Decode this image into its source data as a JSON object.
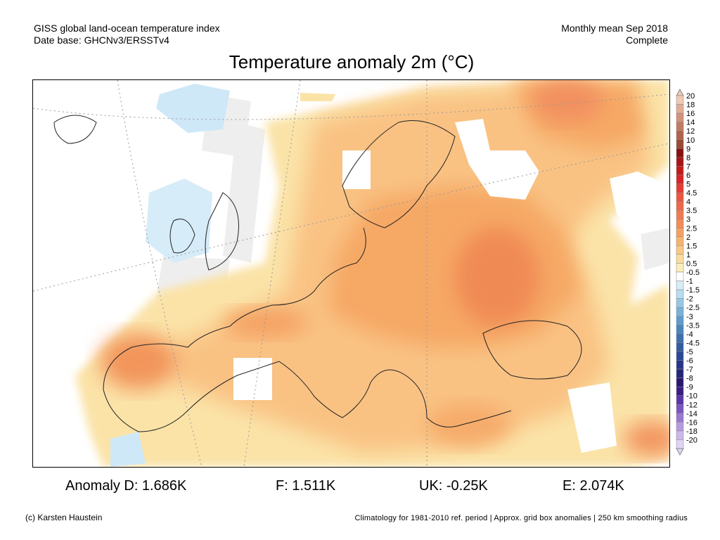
{
  "header": {
    "line1_left": "GISS global land-ocean temperature index",
    "line2_left": "Date base: GHCNv3/ERSSTv4",
    "line1_right": "Monthly mean Sep 2018",
    "line2_right": "Complete"
  },
  "title": "Temperature anomaly 2m (°C)",
  "stats": {
    "d": "Anomaly D: 1.686K",
    "f": "F: 1.511K",
    "uk": "UK: -0.25K",
    "e": "E: 2.074K"
  },
  "credit": "(c) Karsten Haustein",
  "footnote": "Climatology for 1981-2010 ref. period | Approx. grid box anomalies | 250 km smoothing radius",
  "colorbar": {
    "levels": [
      {
        "label": "20",
        "color": "#f0c8b4"
      },
      {
        "label": "18",
        "color": "#e3ad95"
      },
      {
        "label": "16",
        "color": "#d4917a"
      },
      {
        "label": "14",
        "color": "#c47a62"
      },
      {
        "label": "12",
        "color": "#b0624a"
      },
      {
        "label": "10",
        "color": "#9a4a35"
      },
      {
        "label": "9",
        "color": "#8a1010"
      },
      {
        "label": "8",
        "color": "#a81414"
      },
      {
        "label": "7",
        "color": "#c41a1a"
      },
      {
        "label": "6",
        "color": "#d82424"
      },
      {
        "label": "5",
        "color": "#e83a30"
      },
      {
        "label": "4.5",
        "color": "#ee5540"
      },
      {
        "label": "4",
        "color": "#f06848"
      },
      {
        "label": "3.5",
        "color": "#f27a50"
      },
      {
        "label": "3",
        "color": "#f48c58"
      },
      {
        "label": "2.5",
        "color": "#f6a062"
      },
      {
        "label": "2",
        "color": "#f8b46e"
      },
      {
        "label": "1.5",
        "color": "#fac882"
      },
      {
        "label": "1",
        "color": "#fcdc9a"
      },
      {
        "label": "0.5",
        "color": "#fbeeba"
      },
      {
        "label": "-0.5",
        "color": "#ffffff"
      },
      {
        "label": "-1",
        "color": "#d8ecf8"
      },
      {
        "label": "-1.5",
        "color": "#b8dcf0"
      },
      {
        "label": "-2",
        "color": "#96c8e6"
      },
      {
        "label": "-2.5",
        "color": "#78b2da"
      },
      {
        "label": "-3",
        "color": "#5e9ccc"
      },
      {
        "label": "-3.5",
        "color": "#4a86be"
      },
      {
        "label": "-4",
        "color": "#3c70ae"
      },
      {
        "label": "-4.5",
        "color": "#325ca0"
      },
      {
        "label": "-5",
        "color": "#2a4896"
      },
      {
        "label": "-6",
        "color": "#26368a"
      },
      {
        "label": "-7",
        "color": "#24267c"
      },
      {
        "label": "-8",
        "color": "#281870"
      },
      {
        "label": "-9",
        "color": "#3a1e86"
      },
      {
        "label": "-10",
        "color": "#5a36a8"
      },
      {
        "label": "-12",
        "color": "#7a56c0"
      },
      {
        "label": "-14",
        "color": "#9a78d2"
      },
      {
        "label": "-16",
        "color": "#b69ae0"
      },
      {
        "label": "-18",
        "color": "#ccb8ec"
      },
      {
        "label": "-20",
        "color": "#e0d4f6"
      }
    ]
  }
}
